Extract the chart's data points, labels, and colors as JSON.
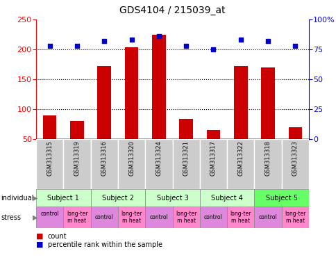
{
  "title": "GDS4104 / 215039_at",
  "samples": [
    "GSM313315",
    "GSM313319",
    "GSM313316",
    "GSM313320",
    "GSM313324",
    "GSM313321",
    "GSM313317",
    "GSM313322",
    "GSM313318",
    "GSM313323"
  ],
  "bar_values": [
    90,
    80,
    172,
    203,
    225,
    84,
    65,
    172,
    170,
    70
  ],
  "dot_values": [
    78,
    78,
    82,
    83,
    86,
    78,
    75,
    83,
    82,
    78
  ],
  "ylim_left": [
    50,
    250
  ],
  "ylim_right": [
    0,
    100
  ],
  "left_ticks": [
    50,
    100,
    150,
    200,
    250
  ],
  "right_ticks": [
    0,
    25,
    50,
    75,
    100
  ],
  "bar_color": "#cc0000",
  "dot_color": "#0000cc",
  "subjects": [
    {
      "label": "Subject 1",
      "start": 0,
      "end": 2,
      "color": "#ccffcc"
    },
    {
      "label": "Subject 2",
      "start": 2,
      "end": 4,
      "color": "#ccffcc"
    },
    {
      "label": "Subject 3",
      "start": 4,
      "end": 6,
      "color": "#ccffcc"
    },
    {
      "label": "Subject 4",
      "start": 6,
      "end": 8,
      "color": "#ccffcc"
    },
    {
      "label": "Subject 5",
      "start": 8,
      "end": 10,
      "color": "#66ff66"
    }
  ],
  "stress": [
    {
      "label": "control\n",
      "start": 0,
      "end": 1,
      "color": "#dd88dd"
    },
    {
      "label": "long-ter\nm heat",
      "start": 1,
      "end": 2,
      "color": "#ff88cc"
    },
    {
      "label": "control",
      "start": 2,
      "end": 3,
      "color": "#dd88dd"
    },
    {
      "label": "long-ter\nm heat",
      "start": 3,
      "end": 4,
      "color": "#ff88cc"
    },
    {
      "label": "control",
      "start": 4,
      "end": 5,
      "color": "#dd88dd"
    },
    {
      "label": "long-ter\nm heat",
      "start": 5,
      "end": 6,
      "color": "#ff88cc"
    },
    {
      "label": "control",
      "start": 6,
      "end": 7,
      "color": "#dd88dd"
    },
    {
      "label": "long-ter\nm heat",
      "start": 7,
      "end": 8,
      "color": "#ff88cc"
    },
    {
      "label": "control",
      "start": 8,
      "end": 9,
      "color": "#dd88dd"
    },
    {
      "label": "long-ter\nm heat",
      "start": 9,
      "end": 10,
      "color": "#ff88cc"
    }
  ],
  "individual_label": "individual",
  "stress_label": "stress",
  "legend_count": "count",
  "legend_pct": "percentile rank within the sample",
  "gsm_bg": "#cccccc"
}
